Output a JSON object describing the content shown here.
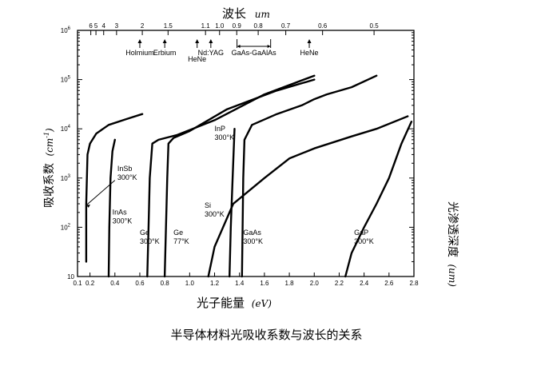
{
  "caption": "半导体材料光吸收系数与波长的关系",
  "chart_data": {
    "type": "line",
    "title": "",
    "top_axis_title": "波长",
    "top_axis_unit": "um",
    "xlabel": "光子能量",
    "xunit": "eV",
    "ylabel": "吸收系数",
    "yunit": "cm",
    "yunit_exp": "-1",
    "right_label": "光渗透深度",
    "right_unit": "um",
    "xlim": [
      0.1,
      2.8
    ],
    "ylim": [
      10,
      1000000
    ],
    "x_ticks": [
      {
        "v": 0.1,
        "t": "0.1"
      },
      {
        "v": 0.2,
        "t": "0.2"
      },
      {
        "v": 0.4,
        "t": "0.4"
      },
      {
        "v": 0.6,
        "t": "0.6"
      },
      {
        "v": 0.8,
        "t": "0.8"
      },
      {
        "v": 1.0,
        "t": "1.0"
      },
      {
        "v": 1.2,
        "t": "1.2"
      },
      {
        "v": 1.4,
        "t": "1.4"
      },
      {
        "v": 1.6,
        "t": "1.6"
      },
      {
        "v": 1.8,
        "t": "1.8"
      },
      {
        "v": 2.0,
        "t": "2.0"
      },
      {
        "v": 2.2,
        "t": "2.2"
      },
      {
        "v": 2.4,
        "t": "2.4"
      },
      {
        "v": 2.6,
        "t": "2.6"
      },
      {
        "v": 2.8,
        "t": "2.8"
      }
    ],
    "y_ticks": [
      {
        "v": 10,
        "base": "10",
        "exp": ""
      },
      {
        "v": 100,
        "base": "10",
        "exp": "2"
      },
      {
        "v": 1000,
        "base": "10",
        "exp": "3"
      },
      {
        "v": 10000,
        "base": "10",
        "exp": "4"
      },
      {
        "v": 100000,
        "base": "10",
        "exp": "5"
      },
      {
        "v": 1000000,
        "base": "10",
        "exp": "6"
      }
    ],
    "top_ticks": [
      {
        "wl": 6,
        "t": "6"
      },
      {
        "wl": 5,
        "t": "5"
      },
      {
        "wl": 4,
        "t": "4"
      },
      {
        "wl": 3,
        "t": "3"
      },
      {
        "wl": 2,
        "t": "2"
      },
      {
        "wl": 1.5,
        "t": "1.5"
      },
      {
        "wl": 1.1,
        "t": "1.1"
      },
      {
        "wl": 1.0,
        "t": "1.0"
      },
      {
        "wl": 0.9,
        "t": "0.9"
      },
      {
        "wl": 0.8,
        "t": "0.8"
      },
      {
        "wl": 0.7,
        "t": "0.7"
      },
      {
        "wl": 0.6,
        "t": "0.6"
      },
      {
        "wl": 0.5,
        "t": "0.5"
      }
    ],
    "lasers": [
      {
        "name": "Holmium",
        "ev": 0.6
      },
      {
        "name": "Erbium",
        "ev": 0.8
      },
      {
        "name": "HeNe",
        "ev": 1.06
      },
      {
        "name": "Nd:YAG",
        "ev": 1.17
      },
      {
        "name": "GaAs-GaAlAs",
        "ev_from": 1.38,
        "ev_to": 1.65
      },
      {
        "name": "HeNe",
        "ev": 1.96
      }
    ],
    "series": [
      {
        "name": "InSb 300°K",
        "label1": "InSb",
        "label2": "300°K",
        "points": [
          [
            0.17,
            20
          ],
          [
            0.17,
            300
          ],
          [
            0.18,
            3000
          ],
          [
            0.2,
            5000
          ],
          [
            0.25,
            8000
          ],
          [
            0.35,
            12000
          ],
          [
            0.5,
            16000
          ],
          [
            0.62,
            20000
          ]
        ]
      },
      {
        "name": "InAs 300°K",
        "label1": "InAs",
        "label2": "300°K",
        "points": [
          [
            0.35,
            10
          ],
          [
            0.355,
            100
          ],
          [
            0.365,
            1000
          ],
          [
            0.38,
            3500
          ],
          [
            0.4,
            6000
          ]
        ]
      },
      {
        "name": "Ge 300°K",
        "label1": "Ge",
        "label2": "300°K",
        "points": [
          [
            0.66,
            10
          ],
          [
            0.67,
            100
          ],
          [
            0.68,
            1000
          ],
          [
            0.7,
            5000
          ],
          [
            0.75,
            6000
          ],
          [
            0.9,
            7500
          ],
          [
            1.2,
            15000
          ],
          [
            1.6,
            50000
          ],
          [
            2.0,
            120000
          ]
        ]
      },
      {
        "name": "Ge 77°K",
        "label1": "Ge",
        "label2": "77°K",
        "points": [
          [
            0.8,
            10
          ],
          [
            0.81,
            100
          ],
          [
            0.82,
            1000
          ],
          [
            0.83,
            5000
          ],
          [
            0.87,
            6500
          ],
          [
            1.0,
            9000
          ],
          [
            1.3,
            25000
          ],
          [
            1.7,
            60000
          ],
          [
            2.0,
            100000
          ]
        ]
      },
      {
        "name": "Si 300°K",
        "label1": "Si",
        "label2": "300°K",
        "points": [
          [
            1.15,
            10
          ],
          [
            1.2,
            40
          ],
          [
            1.35,
            300
          ],
          [
            1.6,
            1000
          ],
          [
            1.8,
            2500
          ],
          [
            2.0,
            4000
          ],
          [
            2.3,
            7000
          ],
          [
            2.5,
            10000
          ],
          [
            2.75,
            18000
          ]
        ]
      },
      {
        "name": "InP 300°K",
        "label1": "InP",
        "label2": "300°K",
        "points": [
          [
            1.32,
            10
          ],
          [
            1.33,
            100
          ],
          [
            1.345,
            1000
          ],
          [
            1.36,
            10000
          ]
        ]
      },
      {
        "name": "GaAs 300°K",
        "label1": "GaAs",
        "label2": "300°K",
        "points": [
          [
            1.42,
            10
          ],
          [
            1.425,
            100
          ],
          [
            1.43,
            1000
          ],
          [
            1.44,
            6000
          ],
          [
            1.5,
            12000
          ],
          [
            1.7,
            20000
          ],
          [
            1.9,
            30000
          ],
          [
            2.0,
            40000
          ],
          [
            2.1,
            50000
          ],
          [
            2.3,
            70000
          ],
          [
            2.5,
            120000
          ]
        ]
      },
      {
        "name": "GaP 300°K",
        "label1": "GaP",
        "label2": "300°K",
        "points": [
          [
            2.25,
            10
          ],
          [
            2.3,
            30
          ],
          [
            2.4,
            100
          ],
          [
            2.5,
            300
          ],
          [
            2.6,
            1000
          ],
          [
            2.7,
            5000
          ],
          [
            2.78,
            14000
          ]
        ]
      }
    ]
  }
}
